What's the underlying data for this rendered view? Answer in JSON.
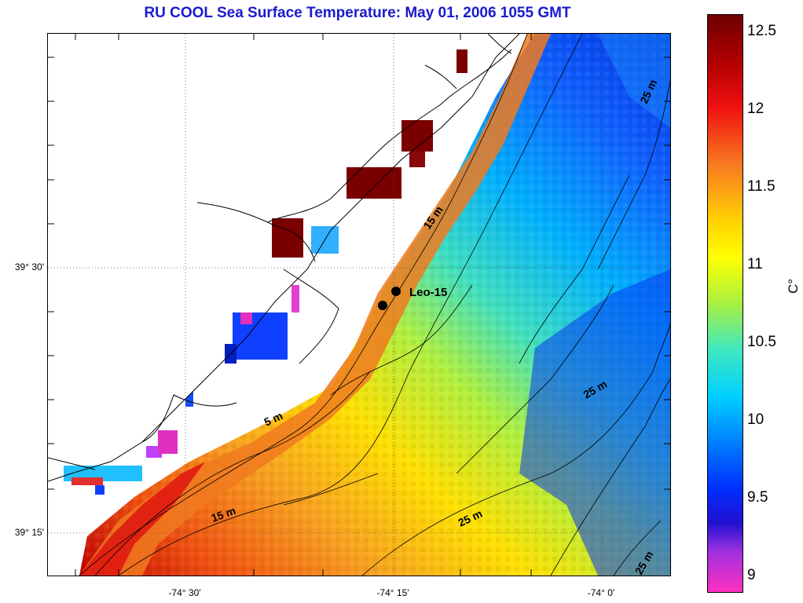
{
  "title": "RU COOL  Sea Surface Temperature:  May 01, 2006 1055 GMT",
  "map": {
    "y_ticks": [
      "39° 30'",
      "39° 15'"
    ],
    "x_ticks": [
      "-74° 30'",
      "-74° 15'",
      "-74° 0'"
    ],
    "station_label": "Leo-15",
    "isobath_labels": [
      "15 m",
      "5 m",
      "15 m",
      "25 m",
      "25 m",
      "25 m",
      "25 m"
    ]
  },
  "colorbar": {
    "ticks": [
      "12.5",
      "12",
      "11.5",
      "11",
      "10.5",
      "10",
      "9.5",
      "9"
    ],
    "label": "C°",
    "range": [
      8.9,
      12.6
    ],
    "colors": {
      "max": "#7a0000",
      "high": "#e02010",
      "mid_high": "#f08020",
      "mid": "#ffee00",
      "mid_low": "#40e0c0",
      "low": "#0050ff",
      "lower": "#1010c0",
      "min": "#ff30c0"
    }
  }
}
